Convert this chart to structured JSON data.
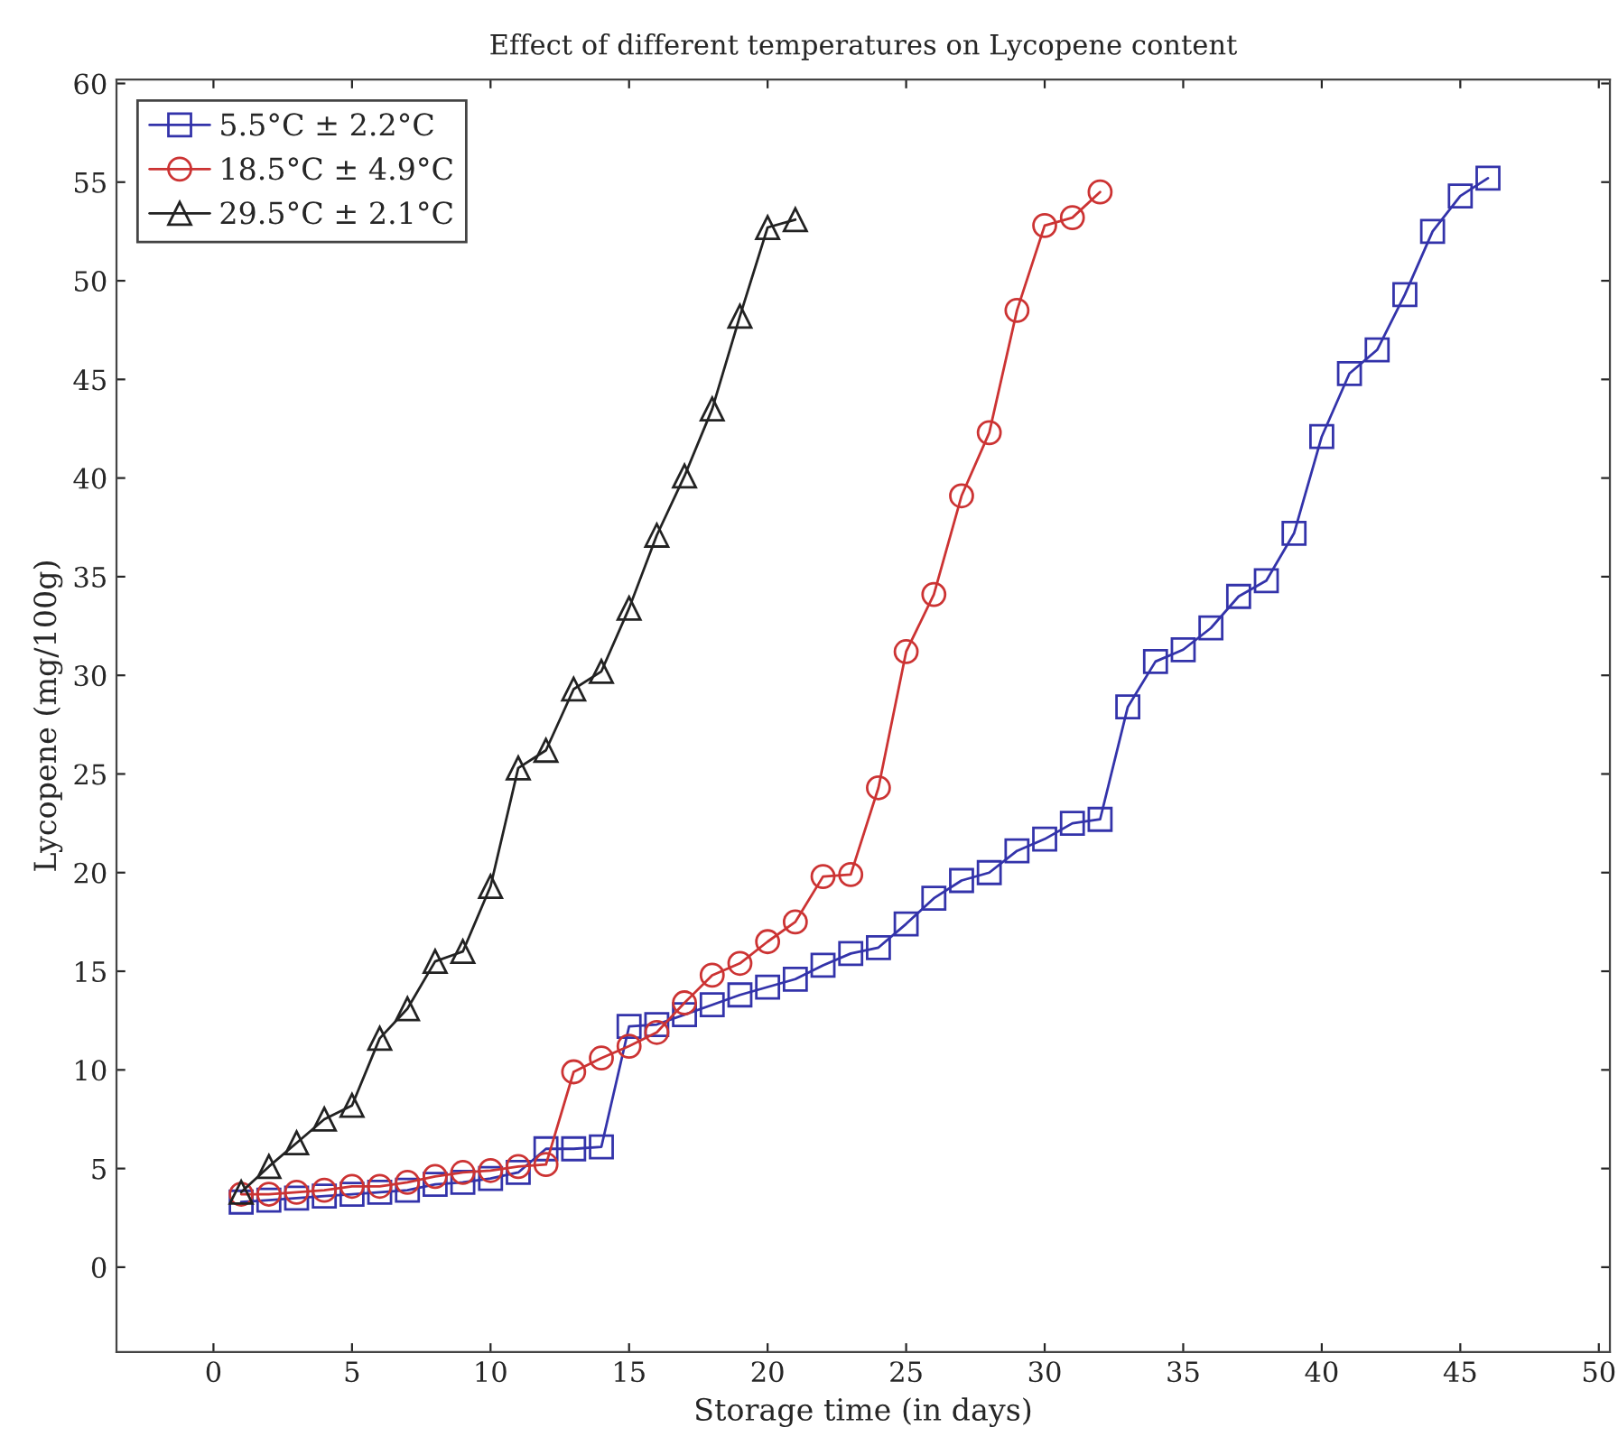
{
  "chart_data": {
    "type": "line",
    "title": "Effect of different temperatures on Lycopene content",
    "xlabel": "Storage time (in days)",
    "ylabel": "Lycopene (mg/100g)",
    "xlim": [
      -3.5,
      50.4
    ],
    "ylim": [
      -4.3,
      60.2
    ],
    "xticks": [
      0,
      5,
      10,
      15,
      20,
      25,
      30,
      35,
      40,
      45,
      50
    ],
    "yticks": [
      0,
      5,
      10,
      15,
      20,
      25,
      30,
      35,
      40,
      45,
      50,
      55,
      60
    ],
    "grid": false,
    "legend": "top left",
    "line_style": "solid",
    "series": [
      {
        "name": "5.5°C ± 2.2°C",
        "color": "#3333aa",
        "marker": "square",
        "x": [
          1,
          2,
          3,
          4,
          5,
          6,
          7,
          8,
          9,
          10,
          11,
          12,
          13,
          14,
          15,
          16,
          17,
          18,
          19,
          20,
          21,
          22,
          23,
          24,
          25,
          26,
          27,
          28,
          29,
          30,
          31,
          32,
          33,
          34,
          35,
          36,
          37,
          38,
          39,
          40,
          41,
          42,
          43,
          44,
          45,
          46
        ],
        "values": [
          3.3,
          3.4,
          3.5,
          3.6,
          3.7,
          3.8,
          3.9,
          4.2,
          4.3,
          4.5,
          4.8,
          6.0,
          6.0,
          6.1,
          12.2,
          12.3,
          12.8,
          13.3,
          13.8,
          14.2,
          14.6,
          15.3,
          15.9,
          16.2,
          17.4,
          18.7,
          19.6,
          20.0,
          21.1,
          21.7,
          22.5,
          22.7,
          28.4,
          30.7,
          31.3,
          32.4,
          34.0,
          34.8,
          37.2,
          42.1,
          45.3,
          46.5,
          49.3,
          52.5,
          54.3,
          55.2
        ]
      },
      {
        "name": "18.5°C ± 4.9°C",
        "color": "#cc3333",
        "marker": "circle",
        "x": [
          1,
          2,
          3,
          4,
          5,
          6,
          7,
          8,
          9,
          10,
          11,
          12,
          13,
          14,
          15,
          16,
          17,
          18,
          19,
          20,
          21,
          22,
          23,
          24,
          25,
          26,
          27,
          28,
          29,
          30,
          31,
          32
        ],
        "values": [
          3.7,
          3.7,
          3.8,
          3.9,
          4.1,
          4.1,
          4.3,
          4.6,
          4.8,
          4.9,
          5.1,
          5.2,
          9.9,
          10.6,
          11.2,
          11.9,
          13.4,
          14.8,
          15.4,
          16.5,
          17.5,
          19.8,
          19.9,
          24.3,
          31.2,
          34.1,
          39.1,
          42.3,
          48.5,
          52.8,
          53.2,
          54.5
        ]
      },
      {
        "name": "29.5°C ± 2.1°C",
        "color": "#222222",
        "marker": "triangle",
        "x": [
          1,
          2,
          3,
          4,
          5,
          6,
          7,
          8,
          9,
          10,
          11,
          12,
          13,
          14,
          15,
          16,
          17,
          18,
          19,
          20,
          21
        ],
        "values": [
          3.8,
          5.1,
          6.3,
          7.5,
          8.2,
          11.6,
          13.1,
          15.5,
          16.0,
          19.3,
          25.3,
          26.2,
          29.3,
          30.2,
          33.4,
          37.1,
          40.1,
          43.5,
          48.2,
          52.7,
          53.1
        ]
      }
    ]
  }
}
